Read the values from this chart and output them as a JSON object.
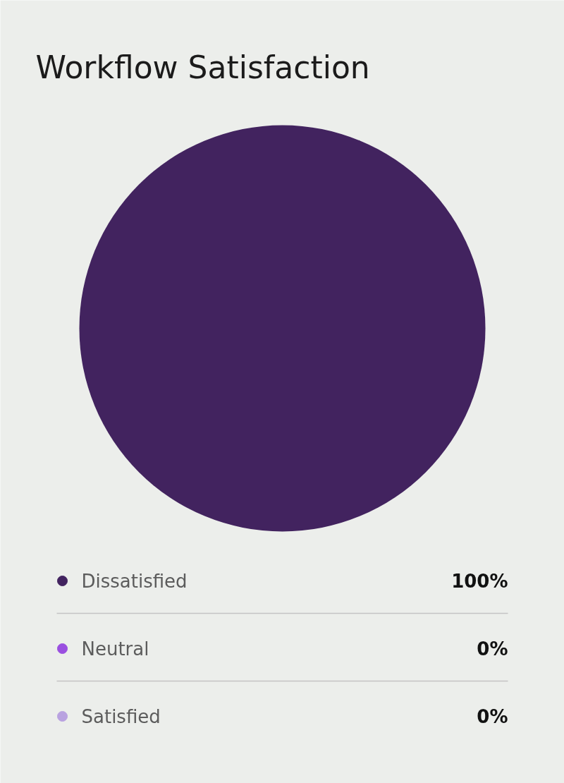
{
  "chart_data": {
    "type": "pie",
    "title": "Workflow Satisfaction",
    "categories": [
      "Dissatisfied",
      "Neutral",
      "Satisfied"
    ],
    "values": [
      100,
      0,
      0
    ],
    "colors": [
      "#42235f",
      "#9a4fe0",
      "#b9a2e0"
    ],
    "value_labels": [
      "100%",
      "0%",
      "0%"
    ],
    "legend": "bottom"
  }
}
